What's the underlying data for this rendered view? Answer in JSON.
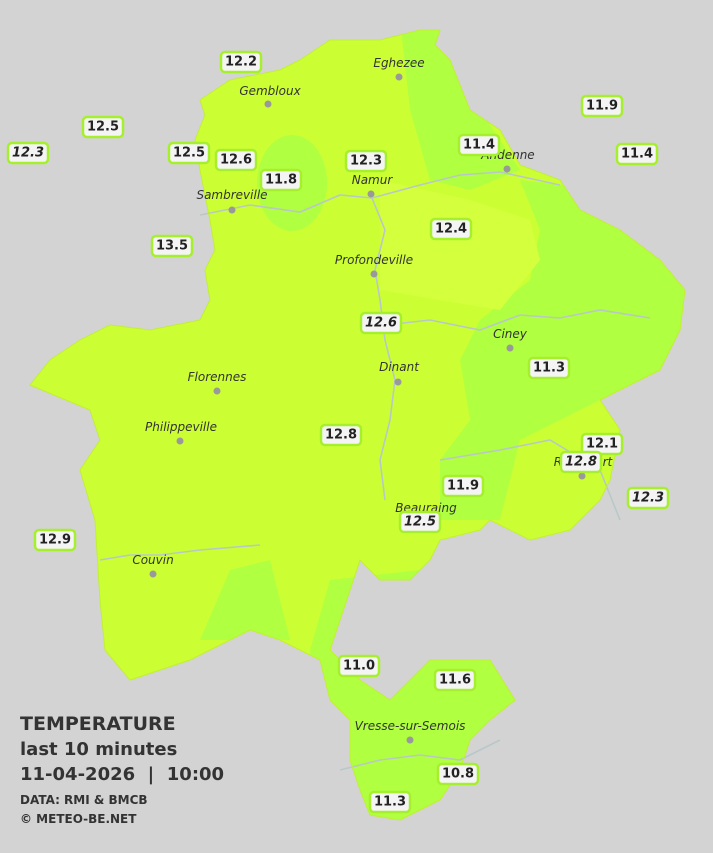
{
  "legend": {
    "title": "TEMPERATURE",
    "period": "last 10 minutes",
    "datetime": "11-04-2026  |  10:00",
    "source": "DATA: RMI & BMCB",
    "credit": "© METEO-BE.NET"
  },
  "cities": [
    "Eghezee",
    "Gembloux",
    "Andenne",
    "Namur",
    "Sambreville",
    "Profondeville",
    "Ciney",
    "Dinant",
    "Florennes",
    "Philippeville",
    "Rochefort",
    "Beauraing",
    "Couvin",
    "Vresse-sur-Semois"
  ],
  "stations": [
    {
      "label": "12.2"
    },
    {
      "label": "12.5"
    },
    {
      "label": "12.3",
      "italic": true
    },
    {
      "label": "12.5"
    },
    {
      "label": "12.6"
    },
    {
      "label": "11.8"
    },
    {
      "label": "12.3"
    },
    {
      "label": "11.4"
    },
    {
      "label": "11.9"
    },
    {
      "label": "11.4"
    },
    {
      "label": "13.5"
    },
    {
      "label": "12.4"
    },
    {
      "label": "12.6",
      "italic": true
    },
    {
      "label": "11.3"
    },
    {
      "label": "12.8"
    },
    {
      "label": "12.1"
    },
    {
      "label": "12.8",
      "italic": true
    },
    {
      "label": "12.3",
      "italic": true
    },
    {
      "label": "11.9"
    },
    {
      "label": "12.5",
      "italic": true
    },
    {
      "label": "12.9"
    },
    {
      "label": "11.0"
    },
    {
      "label": "11.6"
    },
    {
      "label": "10.8"
    },
    {
      "label": "11.3"
    }
  ]
}
